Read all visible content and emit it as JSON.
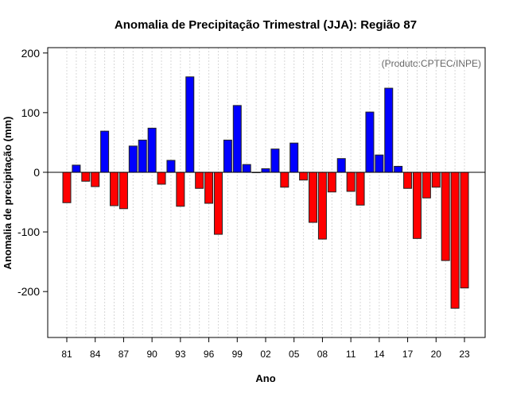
{
  "chart_data": {
    "type": "bar",
    "title": "Anomalia de Precipitação Trimestral (JJA): Região 87",
    "subtitle": "(Produto:CPTEC/INPE)",
    "xlabel": "Ano",
    "ylabel": "Anomalia de precipitação (mm)",
    "ylim": [
      -277,
      209
    ],
    "yticks": [
      -200,
      -100,
      0,
      100,
      200
    ],
    "xtick_labels": [
      "81",
      "84",
      "87",
      "90",
      "93",
      "96",
      "99",
      "02",
      "05",
      "08",
      "11",
      "14",
      "17",
      "20",
      "23"
    ],
    "xtick_years": [
      1981,
      1984,
      1987,
      1990,
      1993,
      1996,
      1999,
      2002,
      2005,
      2008,
      2011,
      2014,
      2017,
      2020,
      2023
    ],
    "grid": "vertical dotted per year",
    "positive_color": "#0000ff",
    "negative_color": "#ff0000",
    "categories": [
      1981,
      1982,
      1983,
      1984,
      1985,
      1986,
      1987,
      1988,
      1989,
      1990,
      1991,
      1992,
      1993,
      1994,
      1995,
      1996,
      1997,
      1998,
      1999,
      2000,
      2001,
      2002,
      2003,
      2004,
      2005,
      2006,
      2007,
      2008,
      2009,
      2010,
      2011,
      2012,
      2013,
      2014,
      2015,
      2016,
      2017,
      2018,
      2019,
      2020,
      2021,
      2022,
      2023
    ],
    "values": [
      -51,
      12,
      -15,
      -24,
      69,
      -56,
      -61,
      44,
      54,
      74,
      -20,
      20,
      -57,
      160,
      -27,
      -52,
      -104,
      54,
      112,
      13,
      0,
      6,
      39,
      -25,
      49,
      -13,
      -84,
      -112,
      -33,
      23,
      -32,
      -55,
      101,
      29,
      141,
      10,
      -27,
      -111,
      -43,
      -25,
      -148,
      -228,
      -194
    ]
  }
}
